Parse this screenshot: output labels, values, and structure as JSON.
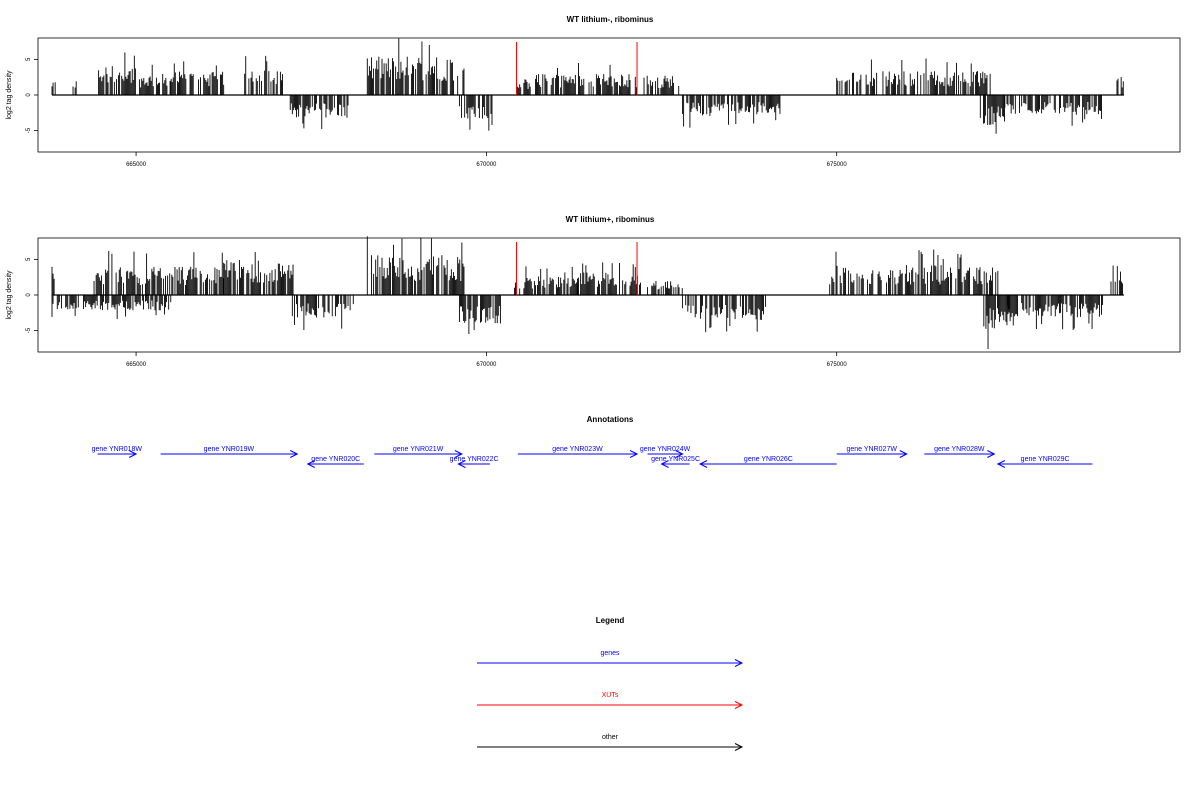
{
  "chart_data": [
    {
      "type": "bar",
      "title": "WT lithium-, ribominus",
      "ylabel": "log2 tag density",
      "xlim": [
        663600,
        679900
      ],
      "ylim": [
        -8,
        8
      ],
      "xticks": [
        665000,
        670000,
        675000
      ],
      "yticks": [
        -5,
        0,
        5
      ],
      "xut_markers": [
        670430,
        672150
      ],
      "segments": [
        {
          "start": 663800,
          "end": 663850,
          "strand": "+",
          "amp": 2.2
        },
        {
          "start": 664100,
          "end": 664150,
          "strand": "+",
          "amp": 2.1
        },
        {
          "start": 664450,
          "end": 665000,
          "strand": "+",
          "amp": 4.2
        },
        {
          "start": 665050,
          "end": 665500,
          "strand": "+",
          "amp": 3.0
        },
        {
          "start": 665500,
          "end": 666250,
          "strand": "+",
          "amp": 3.3
        },
        {
          "start": 666550,
          "end": 667100,
          "strand": "+",
          "amp": 3.8
        },
        {
          "start": 667200,
          "end": 668050,
          "strand": "-",
          "amp": 3.2
        },
        {
          "start": 668300,
          "end": 669700,
          "strand": "+",
          "amp": 5.5
        },
        {
          "start": 669600,
          "end": 670100,
          "strand": "-",
          "amp": 3.4
        },
        {
          "start": 670400,
          "end": 670650,
          "strand": "+",
          "amp": 2.2
        },
        {
          "start": 670700,
          "end": 672150,
          "strand": "+",
          "amp": 3.0
        },
        {
          "start": 672250,
          "end": 672800,
          "strand": "+",
          "amp": 2.8
        },
        {
          "start": 672800,
          "end": 673350,
          "strand": "-",
          "amp": 3.0
        },
        {
          "start": 673350,
          "end": 674200,
          "strand": "-",
          "amp": 2.8
        },
        {
          "start": 675000,
          "end": 677200,
          "strand": "+",
          "amp": 3.4
        },
        {
          "start": 677050,
          "end": 677400,
          "strand": "-",
          "amp": 4.5
        },
        {
          "start": 677400,
          "end": 678800,
          "strand": "-",
          "amp": 2.8
        },
        {
          "start": 679000,
          "end": 679100,
          "strand": "+",
          "amp": 3.0
        }
      ]
    },
    {
      "type": "bar",
      "title": "WT lithium+, ribominus",
      "ylabel": "log2 tag density",
      "xlim": [
        663600,
        679900
      ],
      "ylim": [
        -8,
        8
      ],
      "xticks": [
        665000,
        670000,
        675000
      ],
      "yticks": [
        -5,
        0,
        5
      ],
      "xut_markers": [
        670430,
        672150
      ],
      "segments": [
        {
          "start": 663800,
          "end": 664200,
          "strand": "-",
          "amp": 2.0
        },
        {
          "start": 663800,
          "end": 663850,
          "strand": "+",
          "amp": 4.7
        },
        {
          "start": 664400,
          "end": 666250,
          "strand": "+",
          "amp": 4.0
        },
        {
          "start": 664250,
          "end": 665500,
          "strand": "-",
          "amp": 2.2
        },
        {
          "start": 666250,
          "end": 667250,
          "strand": "+",
          "amp": 5.0
        },
        {
          "start": 667200,
          "end": 668100,
          "strand": "-",
          "amp": 3.3
        },
        {
          "start": 668300,
          "end": 669700,
          "strand": "+",
          "amp": 5.6
        },
        {
          "start": 669600,
          "end": 670200,
          "strand": "-",
          "amp": 4.0
        },
        {
          "start": 670400,
          "end": 671300,
          "strand": "+",
          "amp": 2.6
        },
        {
          "start": 671300,
          "end": 672200,
          "strand": "+",
          "amp": 3.2
        },
        {
          "start": 672300,
          "end": 672800,
          "strand": "+",
          "amp": 2.2
        },
        {
          "start": 672800,
          "end": 674000,
          "strand": "-",
          "amp": 3.6
        },
        {
          "start": 674900,
          "end": 677300,
          "strand": "+",
          "amp": 4.2
        },
        {
          "start": 677100,
          "end": 677500,
          "strand": "-",
          "amp": 5.0
        },
        {
          "start": 677400,
          "end": 678800,
          "strand": "-",
          "amp": 3.2
        },
        {
          "start": 678900,
          "end": 679100,
          "strand": "+",
          "amp": 4.5
        }
      ]
    }
  ],
  "annotations": {
    "title": "Annotations",
    "genes": [
      {
        "label": "gene YNR018W",
        "start": 664450,
        "end": 665000,
        "strand": "+",
        "row": 0
      },
      {
        "label": "gene YNR019W",
        "start": 665350,
        "end": 667300,
        "strand": "+",
        "row": 0
      },
      {
        "label": "gene YNR020C",
        "start": 667450,
        "end": 668250,
        "strand": "-",
        "row": 1
      },
      {
        "label": "gene YNR021W",
        "start": 668400,
        "end": 669650,
        "strand": "+",
        "row": 0
      },
      {
        "label": "gene YNR022C",
        "start": 669600,
        "end": 670050,
        "strand": "-",
        "row": 1
      },
      {
        "label": "gene YNR023W",
        "start": 670450,
        "end": 672150,
        "strand": "+",
        "row": 0
      },
      {
        "label": "gene YNR024W",
        "start": 672300,
        "end": 672800,
        "strand": "+",
        "row": 0
      },
      {
        "label": "gene YNR025C",
        "start": 672500,
        "end": 672900,
        "strand": "-",
        "row": 1
      },
      {
        "label": "gene YNR026C",
        "start": 673050,
        "end": 675000,
        "strand": "-",
        "row": 1
      },
      {
        "label": "gene YNR027W",
        "start": 675000,
        "end": 676000,
        "strand": "+",
        "row": 0
      },
      {
        "label": "gene YNR028W",
        "start": 676250,
        "end": 677250,
        "strand": "+",
        "row": 0
      },
      {
        "label": "gene YNR029C",
        "start": 677300,
        "end": 678650,
        "strand": "-",
        "row": 1
      }
    ]
  },
  "legend": {
    "title": "Legend",
    "items": [
      {
        "label": "genes",
        "color": "#0000ff"
      },
      {
        "label": "XUTs",
        "color": "#ff0000"
      },
      {
        "label": "other",
        "color": "#000000"
      }
    ]
  },
  "colors": {
    "signal": "#000000",
    "xut": "#ff0000",
    "gene": "#0000ff"
  }
}
